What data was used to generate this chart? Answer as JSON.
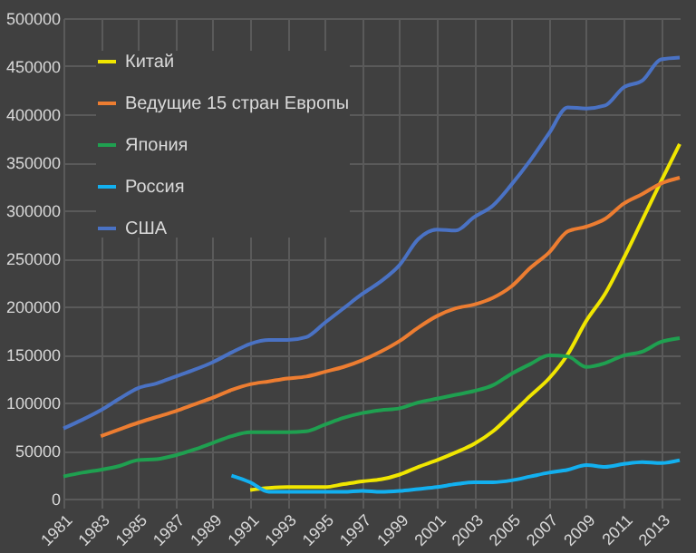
{
  "chart_data": {
    "type": "line",
    "x": [
      1981,
      1982,
      1983,
      1984,
      1985,
      1986,
      1987,
      1988,
      1989,
      1990,
      1991,
      1992,
      1993,
      1994,
      1995,
      1996,
      1997,
      1998,
      1999,
      2000,
      2001,
      2002,
      2003,
      2004,
      2005,
      2006,
      2007,
      2008,
      2009,
      2010,
      2011,
      2012,
      2013,
      2014
    ],
    "xlim": [
      1981,
      2014
    ],
    "xticks": [
      1981,
      1983,
      1985,
      1987,
      1989,
      1991,
      1993,
      1995,
      1997,
      1999,
      2001,
      2003,
      2005,
      2007,
      2009,
      2011,
      2013
    ],
    "ylim": [
      0,
      500000
    ],
    "yticks": [
      0,
      50000,
      100000,
      150000,
      200000,
      250000,
      300000,
      350000,
      400000,
      450000,
      500000
    ],
    "grid": true,
    "legend": "top left",
    "marker": "none",
    "line_style": "solid",
    "series": [
      {
        "name": "Китай",
        "color": "#f0e600",
        "values": [
          null,
          null,
          null,
          null,
          null,
          null,
          null,
          null,
          null,
          null,
          9000,
          11000,
          12000,
          12000,
          12000,
          15000,
          18000,
          20000,
          25000,
          33000,
          40000,
          48000,
          57000,
          70000,
          88000,
          107000,
          125000,
          150000,
          185000,
          213000,
          250000,
          290000,
          330000,
          369000
        ]
      },
      {
        "name": "Ведущие 15 стран Европы",
        "color": "#ed7d31",
        "values": [
          null,
          null,
          65000,
          72000,
          79000,
          85000,
          91000,
          98000,
          105000,
          113000,
          119000,
          122000,
          125000,
          127000,
          132000,
          137000,
          144000,
          153000,
          164000,
          178000,
          190000,
          198000,
          202000,
          209000,
          221000,
          240000,
          256000,
          278000,
          283000,
          291000,
          307000,
          317000,
          328000,
          334000
        ]
      },
      {
        "name": "Япония",
        "color": "#1fa050",
        "values": [
          23000,
          27000,
          30000,
          34000,
          40000,
          41000,
          45000,
          51000,
          58000,
          65000,
          69000,
          69000,
          69000,
          70000,
          77000,
          84000,
          89000,
          92000,
          94000,
          100000,
          104000,
          108000,
          112000,
          118000,
          130000,
          140000,
          149000,
          148000,
          137000,
          141000,
          149000,
          153000,
          163000,
          167000
        ]
      },
      {
        "name": "Россия",
        "color": "#12b0f0",
        "values": [
          null,
          null,
          null,
          null,
          null,
          null,
          null,
          null,
          null,
          24000,
          17000,
          7000,
          7000,
          7000,
          7000,
          7000,
          8000,
          7000,
          8000,
          10000,
          12000,
          15000,
          17000,
          17000,
          19000,
          23000,
          27000,
          30000,
          35000,
          33000,
          36000,
          38000,
          37000,
          40000
        ]
      },
      {
        "name": "США",
        "color": "#4a72c4",
        "values": [
          73000,
          82000,
          92000,
          104000,
          115000,
          120000,
          127000,
          134000,
          142000,
          152000,
          161000,
          165000,
          165000,
          168000,
          183000,
          198000,
          213000,
          226000,
          243000,
          270000,
          280000,
          279000,
          293000,
          305000,
          327000,
          352000,
          380000,
          407000,
          406000,
          409000,
          428000,
          435000,
          457000,
          459000
        ]
      }
    ]
  }
}
